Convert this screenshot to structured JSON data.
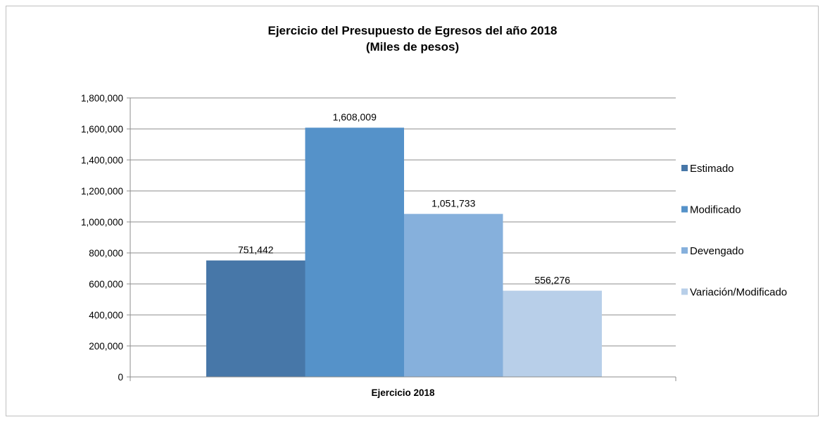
{
  "chart_data": {
    "type": "bar",
    "title_line1": "Ejercicio del Presupuesto de Egresos del año 2018",
    "title_line2": "(Miles de pesos)",
    "categories": [
      "Ejercicio 2018"
    ],
    "series": [
      {
        "name": "Estimado",
        "values": [
          751442
        ],
        "label": "751,442",
        "color": "#4777a8"
      },
      {
        "name": "Modificado",
        "values": [
          1608009
        ],
        "label": "1,608,009",
        "color": "#5592c9"
      },
      {
        "name": "Devengado",
        "values": [
          1051733
        ],
        "label": "1,051,733",
        "color": "#86b0dc"
      },
      {
        "name": "Variación/Modificado",
        "values": [
          556276
        ],
        "label": "556,276",
        "color": "#b8cfe9"
      }
    ],
    "ylim": [
      0,
      1800000
    ],
    "yticks": [
      "0",
      "200,000",
      "400,000",
      "600,000",
      "800,000",
      "1,000,000",
      "1,200,000",
      "1,400,000",
      "1,600,000",
      "1,800,000"
    ],
    "grid": true,
    "legend_position": "right"
  }
}
